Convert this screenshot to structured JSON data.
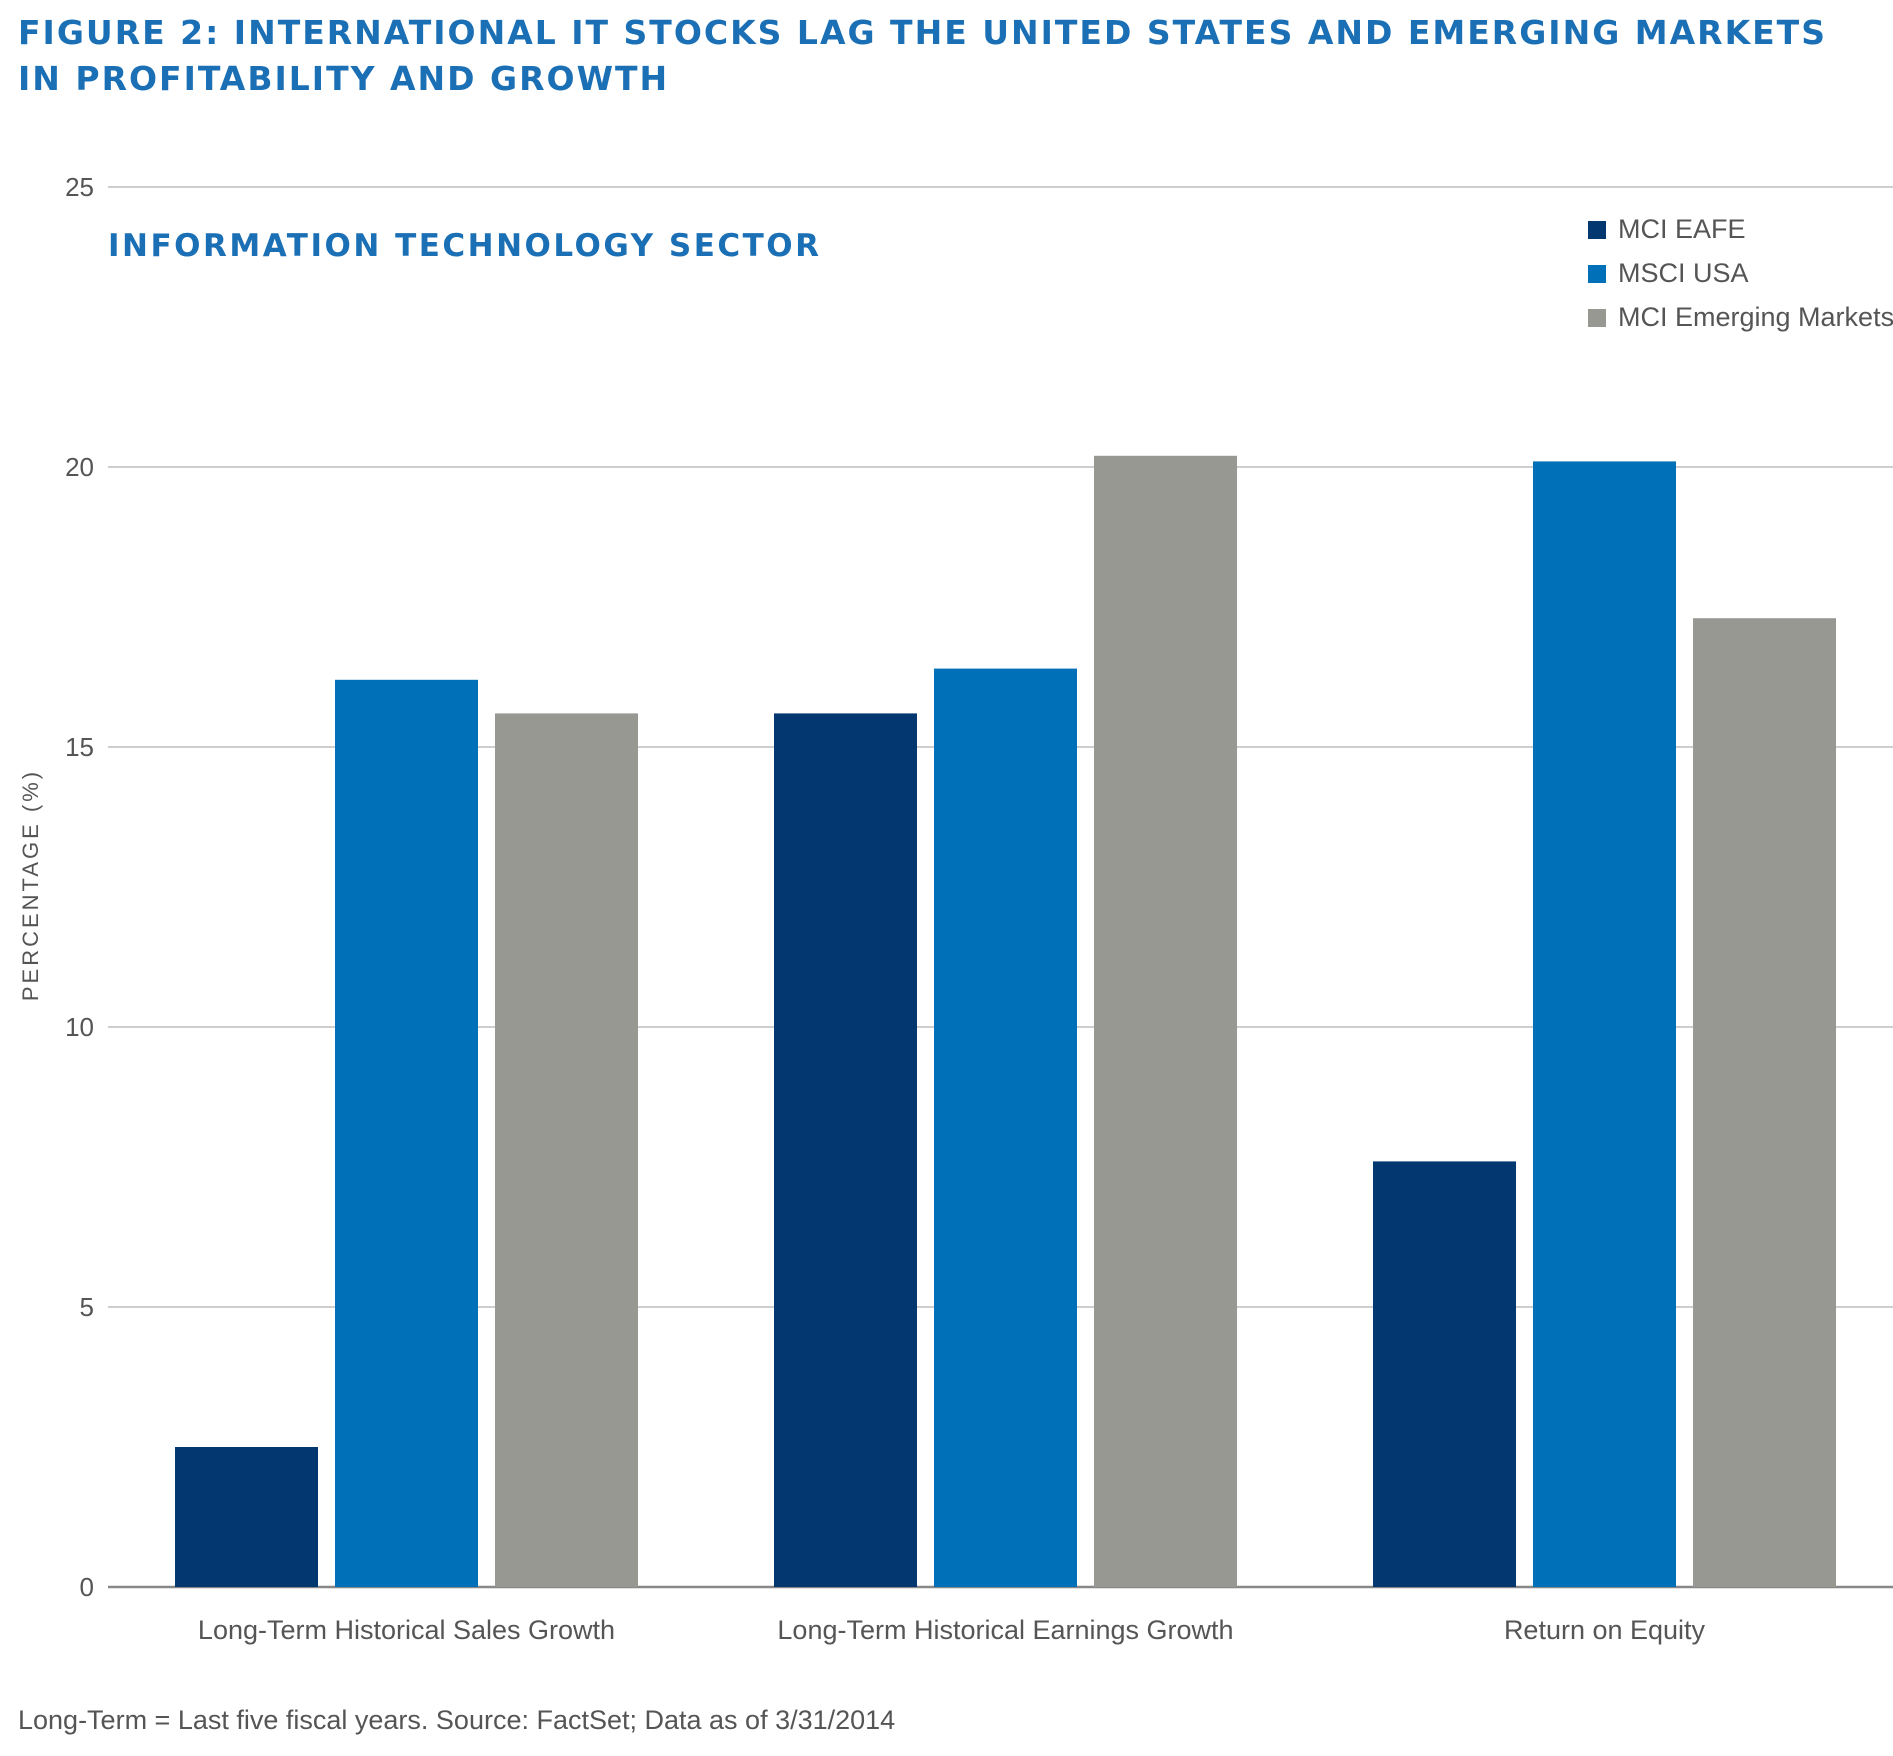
{
  "figure_title": "FIGURE 2: INTERNATIONAL IT STOCKS LAG THE UNITED STATES AND EMERGING MARKETS IN PROFITABILITY AND GROWTH",
  "footnote": "Long-Term = Last five fiscal years. Source: FactSet; Data as of 3/31/2014",
  "colors": {
    "title": "#1a6fb5",
    "gridline": "#bdbdbd",
    "axis": "#888888",
    "text": "#555555"
  },
  "chart_data": {
    "type": "bar",
    "title": "INFORMATION TECHNOLOGY SECTOR",
    "xlabel": "",
    "ylabel": "PERCENTAGE (%)",
    "ylim": [
      0,
      25
    ],
    "yticks": [
      0,
      5,
      10,
      15,
      20,
      25
    ],
    "grid": true,
    "legend_position": "top-right",
    "categories": [
      "Long-Term Historical Sales Growth",
      "Long-Term Historical Earnings Growth",
      "Return on Equity"
    ],
    "series": [
      {
        "name": "MCI EAFE",
        "color": "#02376f",
        "values": [
          2.5,
          15.6,
          7.6
        ]
      },
      {
        "name": "MSCI USA",
        "color": "#0070b8",
        "values": [
          16.2,
          16.4,
          20.1
        ]
      },
      {
        "name": "MCI Emerging Markets",
        "color": "#989893",
        "values": [
          15.6,
          20.2,
          17.3
        ]
      }
    ]
  }
}
